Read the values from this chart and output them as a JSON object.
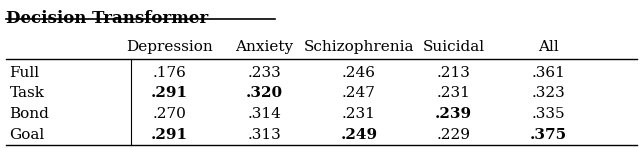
{
  "title": "Decision Transformer",
  "columns": [
    "Depression",
    "Anxiety",
    "Schizophrenia",
    "Suicidal",
    "All"
  ],
  "rows": [
    "Full",
    "Task",
    "Bond",
    "Goal"
  ],
  "values": [
    [
      ".176",
      ".233",
      ".246",
      ".213",
      ".361"
    ],
    [
      ".291",
      ".320",
      ".247",
      ".231",
      ".323"
    ],
    [
      ".270",
      ".314",
      ".231",
      ".239",
      ".335"
    ],
    [
      ".291",
      ".313",
      ".249",
      ".229",
      ".375"
    ]
  ],
  "bold": [
    [
      false,
      false,
      false,
      false,
      false
    ],
    [
      true,
      true,
      false,
      false,
      false
    ],
    [
      false,
      false,
      false,
      true,
      false
    ],
    [
      true,
      false,
      true,
      false,
      true
    ]
  ],
  "bg_color": "#ffffff",
  "text_color": "#000000",
  "font_size": 11,
  "title_font_size": 12
}
